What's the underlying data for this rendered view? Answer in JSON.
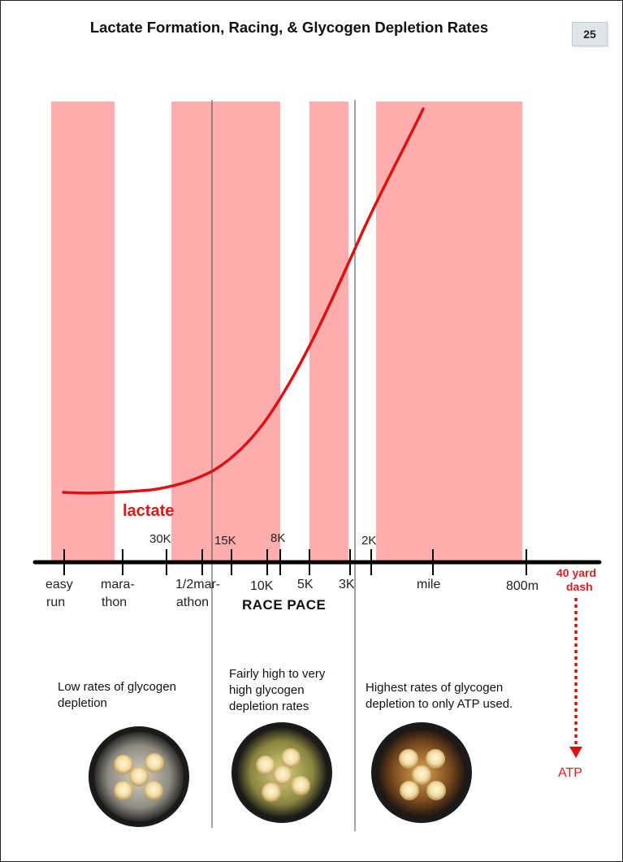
{
  "title": "Lactate Formation, Racing, & Glycogen Depletion Rates",
  "page_number": "25",
  "lactate_label": "lactate",
  "axis_title": "RACE PACE",
  "bottom_labels": {
    "easy_run_1": "easy",
    "easy_run_2": "run",
    "marathon_1": "mara-",
    "marathon_2": "thon",
    "half_1": "1/2mar-",
    "half_2": "athon",
    "k10": "10K",
    "k5": "5K",
    "k3": "3K",
    "mile": "mile",
    "m800": "800m"
  },
  "top_labels": {
    "k30": "30K",
    "k15": "15K",
    "k8": "8K",
    "k2": "2K"
  },
  "dash_label_1": "40 yard",
  "dash_label_2": "dash",
  "atp_label": "ATP",
  "captions": {
    "low": "Low rates of glycogen depletion",
    "mid": "Fairly high to very high glycogen depletion rates",
    "high": "Highest rates of glycogen depletion to only ATP used."
  },
  "colors": {
    "band": "#ffadad",
    "curve": "#e01010",
    "axis": "#000000",
    "red_text": "#e02020"
  },
  "icons": [
    "candle-bowl-image-low",
    "candle-bowl-image-mid",
    "candle-bowl-image-high",
    "dotted-down-arrow-icon"
  ]
}
